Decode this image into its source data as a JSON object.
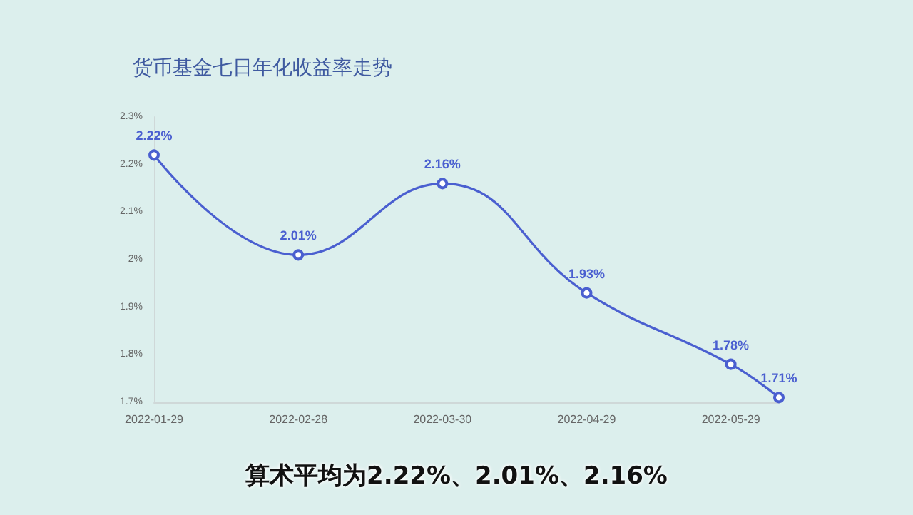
{
  "chart_data": {
    "type": "line",
    "title": "货币基金七日年化收益率走势",
    "x": [
      "2022-01-29",
      "2022-02-28",
      "2022-03-30",
      "2022-04-29",
      "2022-05-29",
      "2022-06-08"
    ],
    "series": [
      {
        "color": "#4a5fd0",
        "values": [
          2.22,
          2.01,
          2.16,
          1.93,
          1.78,
          1.71
        ],
        "value_labels": [
          "2.22%",
          "2.01%",
          "2.16%",
          "1.93%",
          "1.78%",
          "1.71%"
        ]
      }
    ],
    "xlim": [
      "2022-01-29",
      "2022-06-08"
    ],
    "xticks": [
      "2022-01-29",
      "2022-02-28",
      "2022-03-30",
      "2022-04-29",
      "2022-05-29"
    ],
    "ylim": [
      1.7,
      2.3
    ],
    "yticks": [
      {
        "value": 1.7,
        "label": "1.7%"
      },
      {
        "value": 1.8,
        "label": "1.8%"
      },
      {
        "value": 1.9,
        "label": "1.9%"
      },
      {
        "value": 2.0,
        "label": "2%"
      },
      {
        "value": 2.1,
        "label": "2.1%"
      },
      {
        "value": 2.2,
        "label": "2.2%"
      },
      {
        "value": 2.3,
        "label": "2.3%"
      }
    ],
    "marker": "circle",
    "grid": false,
    "annotations": [
      "算术平均为2.22%、2.01%、2.16%"
    ]
  }
}
